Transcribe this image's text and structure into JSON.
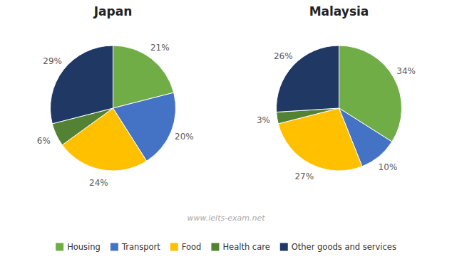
{
  "chart_data": [
    {
      "type": "pie",
      "title": "Japan",
      "categories": [
        "Housing",
        "Transport",
        "Food",
        "Health care",
        "Other goods and services"
      ],
      "values": [
        21,
        20,
        24,
        6,
        29
      ],
      "value_labels": [
        "21%",
        "20%",
        "24%",
        "6%",
        "29%"
      ],
      "colors": [
        "#70ad47",
        "#4472c4",
        "#ffc000",
        "#548235",
        "#1f3864"
      ],
      "data_labels": true,
      "legend": "bottom",
      "annotations": [
        "www.ielts-exam.net"
      ]
    },
    {
      "type": "pie",
      "title": "Malaysia",
      "categories": [
        "Housing",
        "Transport",
        "Food",
        "Health care",
        "Other goods and services"
      ],
      "values": [
        34,
        10,
        27,
        3,
        26
      ],
      "value_labels": [
        "34%",
        "10%",
        "27%",
        "3%",
        "26%"
      ],
      "colors": [
        "#70ad47",
        "#4472c4",
        "#ffc000",
        "#548235",
        "#1f3864"
      ],
      "data_labels": true
    }
  ]
}
